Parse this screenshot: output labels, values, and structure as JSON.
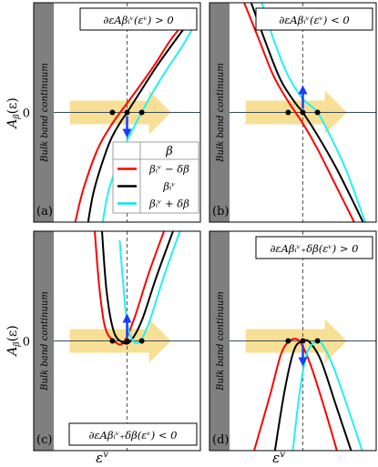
{
  "figure": {
    "y_axis_label": "A",
    "y_axis_label_sub": "β",
    "y_axis_label_arg": "(ε)",
    "x_axis_label": "ε",
    "x_axis_label_sup": "v",
    "tick_zero": "0",
    "bulk_band_text": "Bulk band continuum"
  },
  "legend": {
    "header": "β",
    "entries": [
      {
        "label": "βᵢᵛ − δβ",
        "color": "#ff0000"
      },
      {
        "label": "βᵢᵛ",
        "color": "#000000"
      },
      {
        "label": "βᵢᵛ + δβ",
        "color": "#00e5e5"
      }
    ]
  },
  "colors": {
    "red": "#ff0000",
    "black": "#000000",
    "cyan": "#22f2f2",
    "arrow_band": "#f5d77a",
    "small_arrow": "#1a3cff",
    "bulk_band": "#7f7f7f"
  },
  "chart_data": [
    {
      "panel": "a",
      "label": "(a)",
      "type": "line",
      "annotation": "∂εAβᵢᵛ(εᵛ) > 0",
      "series": [
        {
          "color": "red",
          "x": [
            -0.72,
            -0.6,
            -0.4,
            -0.2,
            0,
            0.2,
            0.4,
            0.6,
            0.9
          ],
          "y": [
            -1.25,
            -0.85,
            -0.4,
            -0.12,
            0.1,
            0.32,
            0.55,
            0.8,
            1.1
          ]
        },
        {
          "color": "black",
          "x": [
            -0.55,
            -0.45,
            -0.25,
            -0.1,
            0,
            0.2,
            0.4,
            0.65,
            0.9
          ],
          "y": [
            -1.3,
            -0.85,
            -0.35,
            -0.12,
            0,
            0.25,
            0.5,
            0.78,
            1.05
          ]
        },
        {
          "color": "cyan",
          "x": [
            -0.35,
            -0.25,
            -0.05,
            0.1,
            0.2,
            0.35,
            0.55,
            0.75,
            0.95
          ],
          "y": [
            -1.3,
            -0.85,
            -0.4,
            -0.15,
            0,
            0.22,
            0.48,
            0.72,
            1.0
          ]
        }
      ],
      "roots": [
        -0.2,
        0,
        0.2
      ],
      "arrow": "down"
    },
    {
      "panel": "b",
      "label": "(b)",
      "type": "line",
      "annotation": "∂εAβᵢᵛ(εᵛ) < 0",
      "series": [
        {
          "color": "red",
          "x": [
            -0.85,
            -0.6,
            -0.4,
            -0.2,
            0,
            0.2,
            0.45,
            0.7
          ],
          "y": [
            1.3,
            0.8,
            0.4,
            0.12,
            -0.12,
            -0.4,
            -0.8,
            -1.2
          ]
        },
        {
          "color": "black",
          "x": [
            -0.75,
            -0.5,
            -0.3,
            -0.1,
            0,
            0.2,
            0.45,
            0.7,
            0.85
          ],
          "y": [
            1.3,
            0.75,
            0.35,
            0.1,
            0,
            -0.25,
            -0.6,
            -1.0,
            -1.25
          ]
        },
        {
          "color": "cyan",
          "x": [
            -0.6,
            -0.4,
            -0.2,
            0,
            0.2,
            0.4,
            0.6,
            0.85
          ],
          "y": [
            1.3,
            0.8,
            0.4,
            0.15,
            0,
            -0.3,
            -0.65,
            -1.2
          ]
        }
      ],
      "roots": [
        -0.2,
        0,
        0.2
      ],
      "arrow": "up"
    },
    {
      "panel": "c",
      "label": "(c)",
      "type": "line",
      "annotation": "∂εAβᵢᵛ₊δβ(εᵛ) < 0",
      "series": [
        {
          "color": "red",
          "x": [
            -0.45,
            -0.38,
            -0.3,
            -0.18,
            -0.05,
            0.1,
            0.3,
            0.55
          ],
          "y": [
            1.3,
            0.6,
            0.15,
            0.0,
            -0.02,
            0.25,
            0.75,
            1.3
          ]
        },
        {
          "color": "black",
          "x": [
            -0.35,
            -0.28,
            -0.18,
            -0.05,
            0.05,
            0.2,
            0.4,
            0.65
          ],
          "y": [
            1.3,
            0.55,
            0.1,
            -0.02,
            0.0,
            0.22,
            0.7,
            1.25
          ]
        },
        {
          "color": "cyan",
          "x": [
            -0.1,
            -0.05,
            0.0,
            0.08,
            0.18,
            0.3,
            0.5,
            0.72
          ],
          "y": [
            1.1,
            0.6,
            0.2,
            0.0,
            0.0,
            0.2,
            0.7,
            1.2
          ]
        }
      ],
      "roots": [
        -0.2,
        0,
        0.2
      ],
      "arrow": "up"
    },
    {
      "panel": "d",
      "label": "(d)",
      "type": "line",
      "annotation": "∂εAβᵢᵛ₊δβ(εᵛ) > 0",
      "series": [
        {
          "color": "red",
          "x": [
            -0.7,
            -0.45,
            -0.3,
            -0.18,
            -0.05,
            0.1,
            0.3,
            0.5
          ],
          "y": [
            -1.3,
            -0.6,
            -0.15,
            0.0,
            0.0,
            -0.25,
            -0.75,
            -1.3
          ]
        },
        {
          "color": "black",
          "x": [
            -0.4,
            -0.25,
            -0.12,
            0.0,
            0.1,
            0.25,
            0.45,
            0.7
          ],
          "y": [
            -1.3,
            -0.55,
            -0.1,
            0.0,
            -0.02,
            -0.22,
            -0.7,
            -1.3
          ]
        },
        {
          "color": "cyan",
          "x": [
            -0.15,
            -0.05,
            0.05,
            0.18,
            0.25,
            0.4,
            0.6,
            0.85
          ],
          "y": [
            -1.3,
            -0.6,
            -0.15,
            0.0,
            -0.02,
            -0.25,
            -0.7,
            -1.3
          ]
        }
      ],
      "roots": [
        -0.2,
        0,
        0.2
      ],
      "arrow": "down"
    }
  ]
}
